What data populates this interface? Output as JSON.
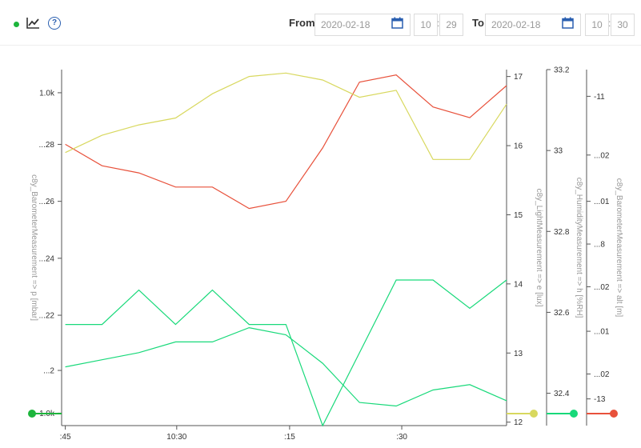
{
  "toolbar": {
    "status_icon": "status-dot",
    "trend_icon": "line-chart-icon",
    "help_icon": "help-icon",
    "help_glyph": "?",
    "from_label": "From",
    "from_date": "2020-02-18",
    "from_hour": "10",
    "from_minute": "29",
    "to_label": "To",
    "to_date": "2020-02-18",
    "to_hour": "10",
    "to_minute": "30",
    "time_separator": ":"
  },
  "chart_data": {
    "type": "line",
    "x_ticks": [
      ":45",
      "10:30",
      ":15",
      ":30"
    ],
    "x_ticks_pos": [
      0,
      3.03,
      6.1,
      9.15
    ],
    "x_range": [
      -0.1,
      12.0
    ],
    "x": [
      0,
      1,
      2,
      3,
      4,
      5,
      6,
      7,
      8,
      9,
      10,
      11,
      12
    ],
    "axes": [
      {
        "id": "pressure",
        "title": "c8y_BarometerMeasurement => p [mbar]",
        "side": "left",
        "range": [
          0,
          1
        ],
        "ticks": [
          "1.0k",
          "...28",
          "...26",
          "...24",
          "...22",
          "...2",
          "1.0k"
        ],
        "tick_values": [
          0.935,
          0.79,
          0.63,
          0.47,
          0.31,
          0.155,
          0.035
        ],
        "color": "#1db53c"
      },
      {
        "id": "light",
        "title": "c8y_LightMeasurement => e [lux]",
        "side": "right",
        "range": [
          11.95,
          17.1
        ],
        "ticks": [
          "17",
          "16",
          "15",
          "14",
          "13",
          "12"
        ],
        "tick_values": [
          17,
          16,
          15,
          14,
          13,
          12
        ],
        "color": "#d8d85e"
      },
      {
        "id": "humidity",
        "title": "c8y_HumidityMeasurement => h [%RH]",
        "side": "right",
        "range": [
          32.32,
          33.2
        ],
        "ticks": [
          "33.2",
          "33",
          "32.8",
          "32.6",
          "32.4"
        ],
        "tick_values": [
          33.2,
          33,
          32.8,
          32.6,
          32.4
        ],
        "color": "#18d97a"
      },
      {
        "id": "altitude",
        "title": "c8y_BarometerMeasurement => alt [m]",
        "side": "right",
        "range": [
          0,
          1
        ],
        "ticks": [
          "-11",
          "...02",
          "...01",
          "...8",
          "...02",
          "...01",
          "...02",
          "-13"
        ],
        "tick_values": [
          0.925,
          0.76,
          0.63,
          0.51,
          0.39,
          0.265,
          0.145,
          0.075
        ],
        "color": "#e8513b"
      }
    ],
    "series": [
      {
        "axis": "altitude",
        "color": "#e8513b",
        "values": [
          0.79,
          0.73,
          0.71,
          0.67,
          0.67,
          0.61,
          0.63,
          0.78,
          0.965,
          0.985,
          0.895,
          0.865,
          0.955
        ]
      },
      {
        "axis": "light",
        "color": "#d8d85e",
        "values": [
          15.9,
          16.15,
          16.3,
          16.4,
          16.75,
          17.0,
          17.05,
          16.95,
          16.7,
          16.8,
          15.8,
          15.8,
          16.6
        ]
      },
      {
        "axis": "pressure",
        "color": "#18d97a",
        "values": [
          0.165,
          0.185,
          0.205,
          0.235,
          0.235,
          0.275,
          0.255,
          0.175,
          0.065,
          0.055,
          0.1,
          0.115,
          0.07
        ]
      },
      {
        "axis": "humidity",
        "color": "#18d97a",
        "values": [
          32.57,
          32.57,
          32.655,
          32.57,
          32.655,
          32.57,
          32.57,
          32.32,
          32.5,
          32.68,
          32.68,
          32.61,
          32.68
        ]
      }
    ]
  }
}
